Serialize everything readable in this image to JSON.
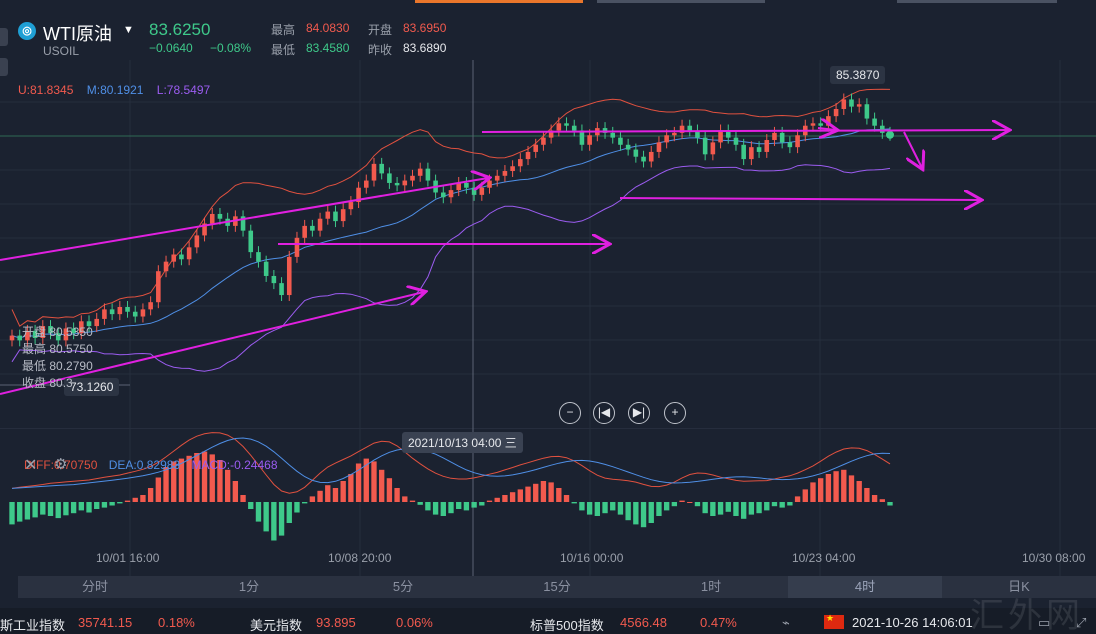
{
  "header": {
    "symbol_name": "WTI原油",
    "symbol_code": "USOIL",
    "price": "83.6250",
    "change": "−0.0640",
    "change_pct": "−0.08%",
    "quote": {
      "high_label": "最高",
      "high": "84.0830",
      "open_label": "开盘",
      "open": "83.6950",
      "low_label": "最低",
      "low": "83.4580",
      "prev_close_label": "昨收",
      "prev_close": "83.6890"
    }
  },
  "bollinger": {
    "upper": "U:81.8345",
    "mid": "M:80.1921",
    "lower": "L:78.5497"
  },
  "macd": {
    "diff": "DIFF:0.70750",
    "dea": "DEA:0.82983",
    "macd": "MACD:-0.24468"
  },
  "crosshair": {
    "time_label": "2021/10/13 04:00 三",
    "price_label": "73.1260",
    "max_label": "85.3870",
    "info": {
      "open_label": "开盘",
      "open": "80.5350",
      "high_label": "最高",
      "high": "80.5750",
      "low_label": "最低",
      "low": "80.2790",
      "close_label": "收盘",
      "close": "80.3"
    }
  },
  "timeframes": [
    "分时",
    "1分",
    "5分",
    "15分",
    "1时",
    "4时",
    "日K"
  ],
  "active_timeframe": "4时",
  "ticker": {
    "items": [
      {
        "name": "斯工业指数",
        "value": "35741.15",
        "pct": "0.18%"
      },
      {
        "name": "美元指数",
        "value": "93.895",
        "pct": "0.06%"
      },
      {
        "name": "标普500指数",
        "value": "4566.48",
        "pct": "0.47%"
      }
    ],
    "datetime": "2021-10-26 14:06:01"
  },
  "watermark": "汇外网",
  "colors": {
    "up": "#f25a4e",
    "down": "#3ec98a",
    "upper": "#e0513f",
    "mid": "#4f8fe6",
    "lower": "#9b5cf0",
    "annot": "#e020e0",
    "dea": "#4f8fe6",
    "diff": "#e0513f"
  },
  "chart_data": {
    "type": "candlestick",
    "symbol": "USOIL",
    "interval": "4时",
    "x_ticks": [
      "10/01 16:00",
      "10/08 20:00",
      "10/16 00:00",
      "10/23 04:00",
      "10/30 08:00"
    ],
    "macd_x_ticks": [
      "10/01 16:00",
      "10/08 20:00",
      "10/16 00:00",
      "10/23 04:00",
      "10/30 08:00"
    ],
    "y_range": [
      72.5,
      86.0
    ],
    "close_series": [
      75.2,
      75.0,
      75.4,
      75.1,
      75.6,
      75.3,
      75.0,
      75.5,
      75.3,
      75.8,
      75.6,
      75.9,
      76.3,
      76.1,
      76.4,
      76.2,
      76.0,
      76.3,
      76.6,
      77.9,
      78.3,
      78.6,
      78.4,
      78.9,
      79.4,
      79.9,
      80.3,
      80.1,
      79.8,
      80.2,
      79.6,
      78.7,
      78.3,
      77.7,
      77.4,
      76.9,
      78.5,
      79.3,
      79.8,
      79.6,
      80.1,
      80.4,
      80.0,
      80.5,
      80.8,
      81.4,
      81.7,
      82.4,
      82.0,
      81.6,
      81.5,
      81.7,
      81.9,
      82.2,
      81.7,
      81.2,
      81.0,
      81.3,
      81.6,
      81.4,
      81.1,
      81.4,
      81.7,
      81.9,
      82.1,
      82.3,
      82.6,
      82.9,
      83.2,
      83.5,
      83.8,
      84.1,
      84.0,
      83.8,
      83.2,
      83.6,
      83.9,
      83.7,
      83.5,
      83.2,
      83.0,
      82.7,
      82.5,
      82.9,
      83.3,
      83.6,
      83.7,
      84.0,
      83.8,
      83.5,
      82.8,
      83.3,
      83.8,
      83.5,
      83.2,
      82.6,
      83.1,
      82.9,
      83.4,
      83.7,
      83.3,
      83.1,
      83.6,
      84.0,
      84.1,
      84.0,
      84.4,
      84.7,
      85.1,
      84.8,
      84.9,
      84.3,
      84.0,
      83.7,
      83.62
    ],
    "macd_hist": [
      -0.32,
      -0.28,
      -0.25,
      -0.22,
      -0.18,
      -0.2,
      -0.23,
      -0.19,
      -0.16,
      -0.12,
      -0.15,
      -0.1,
      -0.08,
      -0.05,
      -0.02,
      0.02,
      0.06,
      0.1,
      0.2,
      0.35,
      0.5,
      0.58,
      0.62,
      0.66,
      0.7,
      0.72,
      0.68,
      0.6,
      0.46,
      0.3,
      0.1,
      -0.1,
      -0.28,
      -0.42,
      -0.55,
      -0.48,
      -0.3,
      -0.15,
      -0.02,
      0.08,
      0.16,
      0.24,
      0.2,
      0.3,
      0.4,
      0.55,
      0.62,
      0.58,
      0.46,
      0.34,
      0.2,
      0.08,
      0.02,
      -0.04,
      -0.12,
      -0.18,
      -0.2,
      -0.16,
      -0.1,
      -0.12,
      -0.08,
      -0.05,
      0.02,
      0.06,
      0.1,
      0.14,
      0.18,
      0.22,
      0.26,
      0.3,
      0.28,
      0.2,
      0.1,
      -0.02,
      -0.12,
      -0.18,
      -0.2,
      -0.16,
      -0.12,
      -0.18,
      -0.26,
      -0.32,
      -0.36,
      -0.3,
      -0.2,
      -0.12,
      -0.06,
      0.02,
      0.0,
      -0.06,
      -0.16,
      -0.2,
      -0.18,
      -0.14,
      -0.2,
      -0.24,
      -0.18,
      -0.16,
      -0.12,
      -0.06,
      -0.08,
      -0.05,
      0.08,
      0.18,
      0.28,
      0.34,
      0.4,
      0.44,
      0.46,
      0.38,
      0.3,
      0.2,
      0.1,
      0.04,
      -0.05
    ]
  }
}
